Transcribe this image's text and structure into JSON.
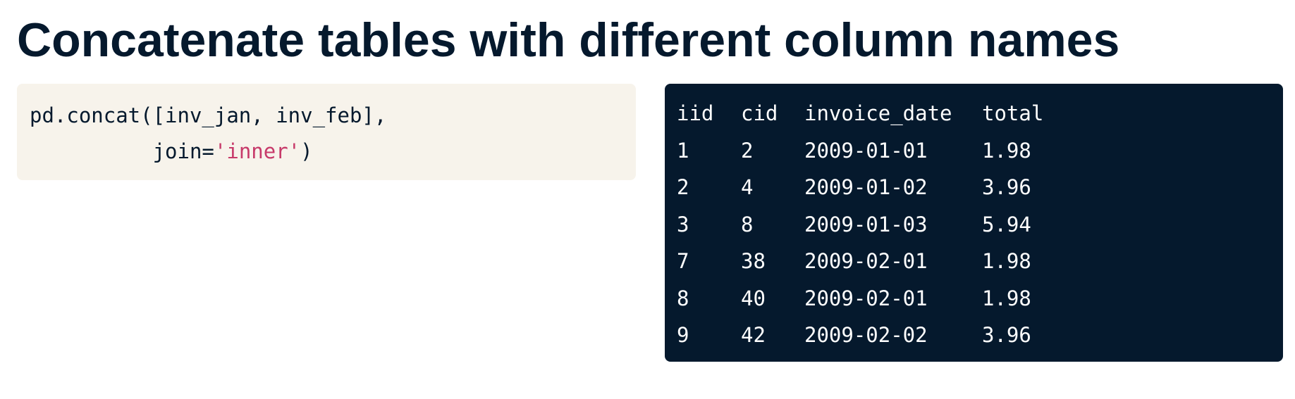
{
  "title": "Concatenate tables with different column names",
  "code": {
    "line1": "pd.concat([inv_jan, inv_feb],",
    "line2_prefix": "          join=",
    "line2_string": "'inner'",
    "line2_suffix": ")"
  },
  "output_table": {
    "columns": [
      "iid",
      "cid",
      "invoice_date",
      "total"
    ],
    "rows": [
      [
        "1",
        "2",
        "2009-01-01",
        "1.98"
      ],
      [
        "2",
        "4",
        "2009-01-02",
        "3.96"
      ],
      [
        "3",
        "8",
        "2009-01-03",
        "5.94"
      ],
      [
        "7",
        "38",
        "2009-02-01",
        "1.98"
      ],
      [
        "8",
        "40",
        "2009-02-01",
        "1.98"
      ],
      [
        "9",
        "42",
        "2009-02-02",
        "3.96"
      ]
    ]
  },
  "colors": {
    "title_text": "#05192d",
    "code_background": "#f7f3eb",
    "code_string": "#c73a6a",
    "output_background": "#05192d",
    "output_text": "#ffffff"
  }
}
